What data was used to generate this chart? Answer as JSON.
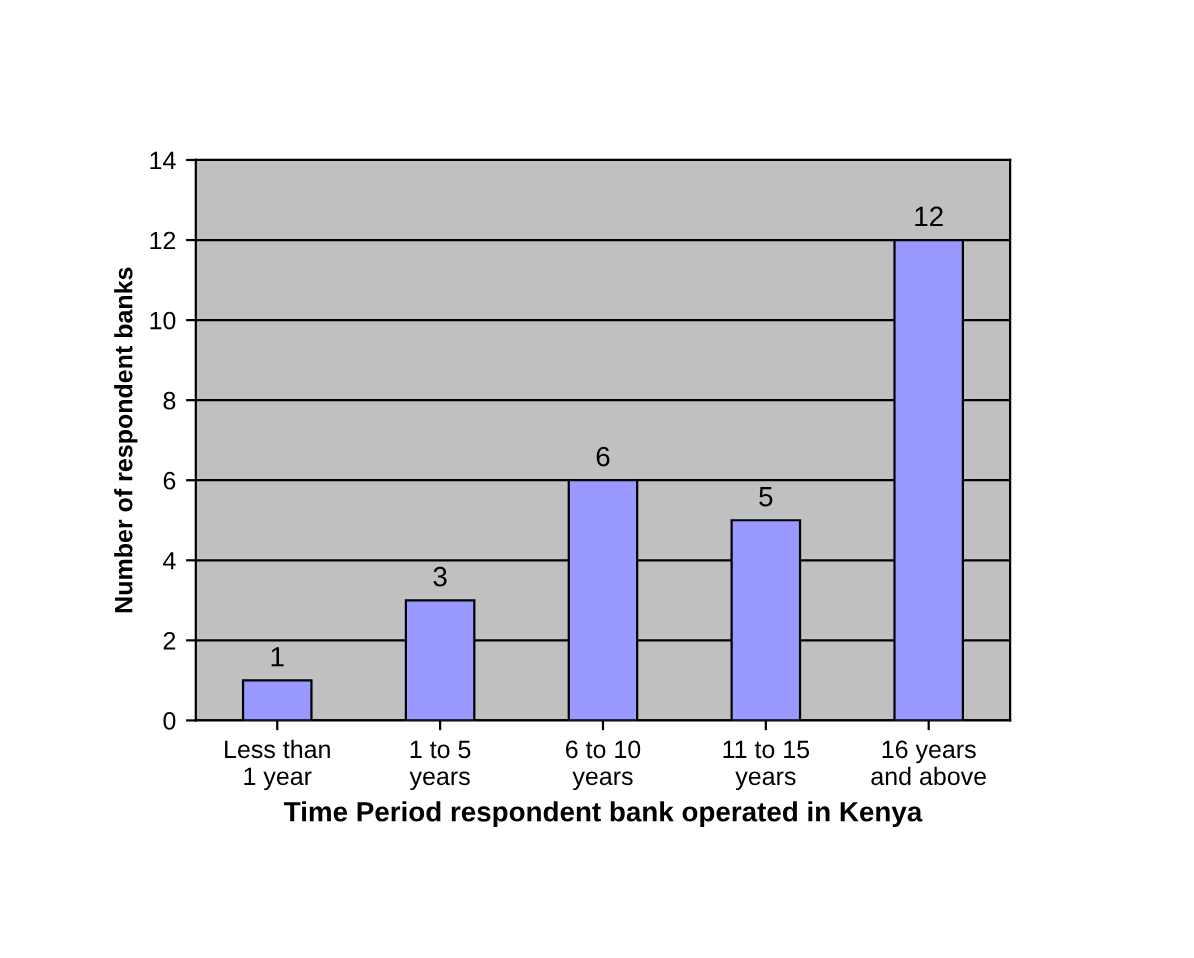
{
  "chart_data": {
    "type": "bar",
    "categories": [
      "Less than\n1 year",
      "1 to 5\nyears",
      "6 to 10\nyears",
      "11 to 15\nyears",
      "16 years\nand above"
    ],
    "values": [
      1,
      3,
      6,
      5,
      12
    ],
    "color": "#9999ff",
    "xlabel": "Time Period respondent bank operated in Kenya",
    "ylabel": "Number of respondent banks",
    "ylim": [
      0,
      14
    ],
    "yticks": [
      0,
      2,
      4,
      6,
      8,
      10,
      12,
      14
    ],
    "grid": "y",
    "data_labels": true
  }
}
